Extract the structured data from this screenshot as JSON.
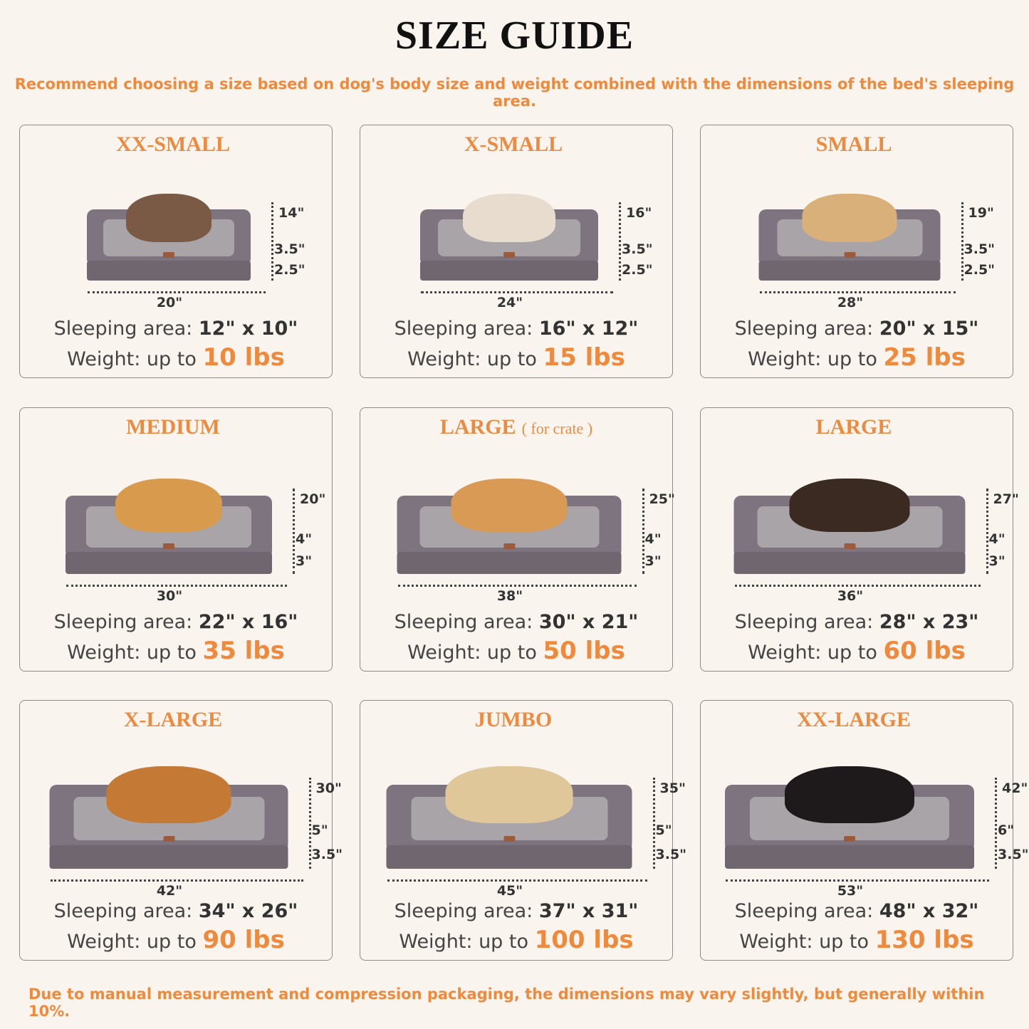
{
  "header": {
    "title": "SIZE GUIDE",
    "subtitle": "Recommend choosing a size based on dog's body size and weight combined with the dimensions of the bed's sleeping area."
  },
  "labels": {
    "sleeping_area": "Sleeping area:",
    "weight": "Weight: up to"
  },
  "colors": {
    "accent": "#ef8a3c",
    "background": "#faf4ef",
    "bed": "#7d7480"
  },
  "sizes": [
    {
      "name": "XX-SMALL",
      "note": "",
      "pet": "cat",
      "depth": "14\"",
      "h1": "3.5\"",
      "h2": "2.5\"",
      "width": "20\"",
      "sleeping_area": "12\" x 10\"",
      "weight": "10 lbs"
    },
    {
      "name": "X-SMALL",
      "note": "",
      "pet": "dog",
      "depth": "16\"",
      "h1": "3.5\"",
      "h2": "2.5\"",
      "width": "24\"",
      "sleeping_area": "16\" x 12\"",
      "weight": "15 lbs"
    },
    {
      "name": "SMALL",
      "note": "",
      "pet": "dog",
      "depth": "19\"",
      "h1": "3.5\"",
      "h2": "2.5\"",
      "width": "28\"",
      "sleeping_area": "20\" x 15\"",
      "weight": "25 lbs"
    },
    {
      "name": "MEDIUM",
      "note": "",
      "pet": "dog",
      "depth": "20\"",
      "h1": "4\"",
      "h2": "3\"",
      "width": "30\"",
      "sleeping_area": "22\" x 16\"",
      "weight": "35 lbs"
    },
    {
      "name": "LARGE",
      "note": "( for crate )",
      "pet": "dog",
      "depth": "25\"",
      "h1": "4\"",
      "h2": "3\"",
      "width": "38\"",
      "sleeping_area": "30\" x 21\"",
      "weight": "50 lbs"
    },
    {
      "name": "LARGE",
      "note": "",
      "pet": "dog",
      "depth": "27\"",
      "h1": "4\"",
      "h2": "3\"",
      "width": "36\"",
      "sleeping_area": "28\" x 23\"",
      "weight": "60 lbs"
    },
    {
      "name": "X-LARGE",
      "note": "",
      "pet": "dog",
      "depth": "30\"",
      "h1": "5\"",
      "h2": "3.5\"",
      "width": "42\"",
      "sleeping_area": "34\" x 26\"",
      "weight": "90 lbs"
    },
    {
      "name": "JUMBO",
      "note": "",
      "pet": "dog",
      "depth": "35\"",
      "h1": "5\"",
      "h2": "3.5\"",
      "width": "45\"",
      "sleeping_area": "37\" x 31\"",
      "weight": "100 lbs"
    },
    {
      "name": "XX-LARGE",
      "note": "",
      "pet": "dog",
      "depth": "42\"",
      "h1": "6\"",
      "h2": "3.5\"",
      "width": "53\"",
      "sleeping_area": "48\" x 32\"",
      "weight": "130 lbs"
    }
  ],
  "footer": "Due to manual measurement and compression packaging, the dimensions may vary slightly, but generally within 10%."
}
